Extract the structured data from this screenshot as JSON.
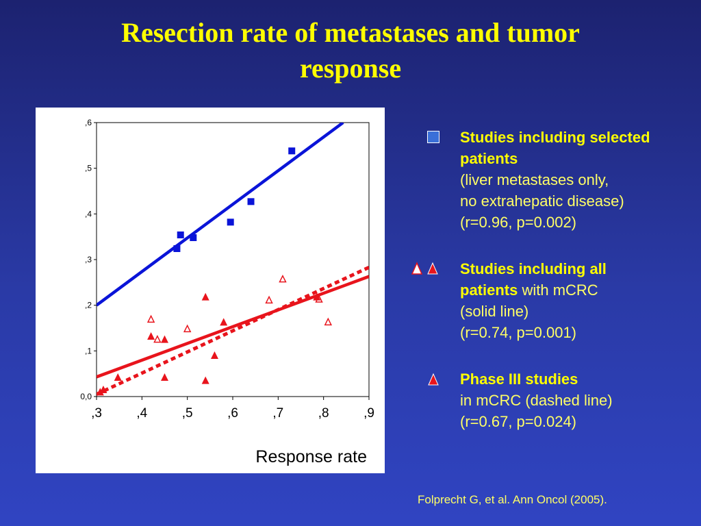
{
  "title_lines": [
    "Resection rate of metastases and tumor",
    "response"
  ],
  "chart_data": {
    "type": "scatter",
    "xlabel": "Response rate",
    "ylabel": "",
    "xlim": [
      0.3,
      0.9
    ],
    "ylim": [
      0.0,
      0.6
    ],
    "x_ticks": [
      ",3",
      ",4",
      ",5",
      ",6",
      ",7",
      ",8",
      ",9"
    ],
    "y_ticks": [
      "0,0",
      ",1",
      ",2",
      ",3",
      ",4",
      ",5",
      ",6"
    ],
    "series": [
      {
        "marker": "square-filled",
        "color": "#0a14d8",
        "points": [
          [
            0.477,
            0.324
          ],
          [
            0.485,
            0.354
          ],
          [
            0.513,
            0.348
          ],
          [
            0.595,
            0.382
          ],
          [
            0.64,
            0.427
          ],
          [
            0.73,
            0.538
          ]
        ],
        "fit": [
          [
            0.3,
            0.2
          ],
          [
            0.843,
            0.6
          ]
        ],
        "fit_style": "solid"
      },
      {
        "marker": "triangle-open",
        "color": "#e8141c",
        "points": [
          [
            0.42,
            0.169
          ],
          [
            0.434,
            0.125
          ],
          [
            0.5,
            0.148
          ],
          [
            0.68,
            0.211
          ],
          [
            0.71,
            0.257
          ],
          [
            0.79,
            0.213
          ],
          [
            0.81,
            0.163
          ]
        ],
        "fit": null
      },
      {
        "marker": "triangle-filled",
        "color": "#e8141c",
        "points": [
          [
            0.308,
            0.01
          ],
          [
            0.315,
            0.015
          ],
          [
            0.347,
            0.042
          ],
          [
            0.42,
            0.132
          ],
          [
            0.45,
            0.125
          ],
          [
            0.45,
            0.042
          ],
          [
            0.54,
            0.035
          ],
          [
            0.54,
            0.218
          ],
          [
            0.56,
            0.09
          ],
          [
            0.58,
            0.163
          ],
          [
            0.785,
            0.218
          ]
        ],
        "fit": [
          [
            0.3,
            0.043
          ],
          [
            0.9,
            0.263
          ]
        ],
        "fit_style": "solid"
      },
      {
        "marker": "none",
        "color": "#e8141c",
        "points": [],
        "fit": [
          [
            0.3,
            0.005
          ],
          [
            0.9,
            0.283
          ]
        ],
        "fit_style": "dashed"
      }
    ]
  },
  "legend": {
    "selected": {
      "bold": "Studies including selected patients",
      "lines": [
        "(liver metastases only,",
        "no extrahepatic disease)",
        "(r=0.96, p=0.002)"
      ]
    },
    "all": {
      "bold": "Studies including all patients",
      "inline_rest": " with mCRC",
      "lines": [
        "(solid line)",
        "(r=0.74, p=0.001)"
      ]
    },
    "phase3": {
      "bold": "Phase III studies",
      "lines": [
        "in mCRC (dashed line)",
        "(r=0.67, p=0.024)"
      ]
    }
  },
  "citation": "Folprecht G, et al. Ann Oncol (2005)."
}
